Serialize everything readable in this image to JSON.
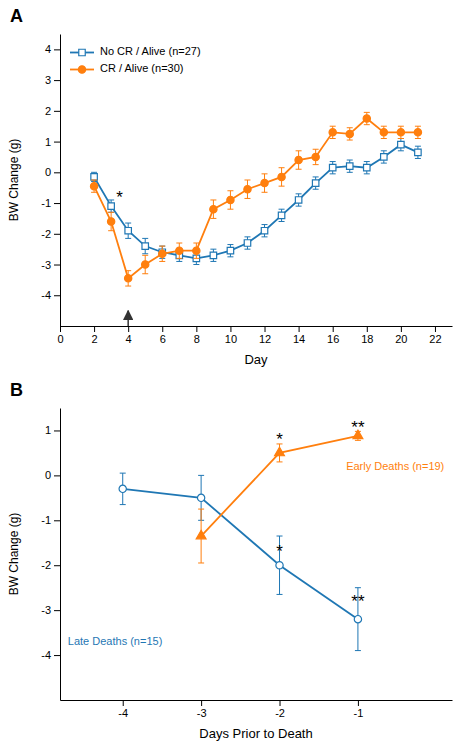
{
  "chart_data": [
    {
      "type": "line",
      "title": "A",
      "xlabel": "Day",
      "ylabel": "BW Change (g)",
      "xlim": [
        0,
        23
      ],
      "ylim": [
        -5,
        4.5
      ],
      "xticks": [
        0,
        2,
        4,
        6,
        8,
        10,
        12,
        14,
        16,
        18,
        20,
        22
      ],
      "yticks": [
        -4,
        -3,
        -2,
        -1,
        0,
        1,
        2,
        3,
        4
      ],
      "legend": "upper left",
      "x": [
        2,
        3,
        4,
        5,
        6,
        7,
        8,
        9,
        10,
        11,
        12,
        13,
        14,
        15,
        16,
        17,
        18,
        19,
        20,
        21
      ],
      "series": [
        {
          "name": "No CR / Alive (n=27)",
          "marker": "open-square",
          "values": [
            -0.15,
            -1.1,
            -1.9,
            -2.4,
            -2.6,
            -2.7,
            -2.8,
            -2.7,
            -2.55,
            -2.3,
            -1.9,
            -1.4,
            -0.9,
            -0.35,
            0.15,
            0.2,
            0.15,
            0.5,
            0.9,
            0.65
          ],
          "error": [
            0.15,
            0.2,
            0.25,
            0.25,
            0.2,
            0.2,
            0.2,
            0.2,
            0.2,
            0.2,
            0.2,
            0.2,
            0.2,
            0.2,
            0.2,
            0.2,
            0.2,
            0.2,
            0.2,
            0.2
          ]
        },
        {
          "name": "CR / Alive (n=30)",
          "marker": "circle",
          "values": [
            -0.45,
            -1.6,
            -3.45,
            -3.0,
            -2.65,
            -2.55,
            -2.55,
            -1.2,
            -0.9,
            -0.55,
            -0.35,
            -0.15,
            0.4,
            0.5,
            1.3,
            1.25,
            1.75,
            1.3,
            1.3,
            1.3
          ],
          "error": [
            0.2,
            0.3,
            0.25,
            0.3,
            0.25,
            0.25,
            0.25,
            0.3,
            0.3,
            0.3,
            0.3,
            0.3,
            0.3,
            0.25,
            0.2,
            0.2,
            0.2,
            0.2,
            0.2,
            0.2
          ]
        }
      ],
      "annotations": [
        {
          "text": "*",
          "x": 3.5,
          "y": -0.85
        }
      ],
      "arrows": [
        {
          "x": 4,
          "y_from": -5.0,
          "y_to": -4.5
        }
      ]
    },
    {
      "type": "line",
      "title": "B",
      "xlabel": "Days Prior to Death",
      "ylabel": "BW Change (g)",
      "xlim": [
        -4.8,
        0.2
      ],
      "ylim": [
        -5,
        1.5
      ],
      "xticks": [
        -4,
        -3,
        -2,
        -1
      ],
      "yticks": [
        -4,
        -3,
        -2,
        -1,
        0,
        1
      ],
      "series": [
        {
          "name": "Late Deaths (n=15)",
          "marker": "open-circle",
          "x": [
            -4,
            -3,
            -2,
            -1
          ],
          "values": [
            -0.3,
            -0.5,
            -2.0,
            -3.2
          ],
          "error": [
            0.35,
            0.5,
            0.65,
            0.7
          ],
          "label_x": -4.7,
          "label_y": -3.7
        },
        {
          "name": "Early Deaths (n=19)",
          "marker": "triangle",
          "x": [
            -3,
            -2,
            -1
          ],
          "values": [
            -1.35,
            0.5,
            0.88
          ],
          "error": [
            0.6,
            0.2,
            0.1
          ],
          "label_x": -1.15,
          "label_y": 0.18
        }
      ],
      "annotations": [
        {
          "text": "*",
          "x": -2,
          "y": 0.78
        },
        {
          "text": "*",
          "x": -2,
          "y": -1.72
        },
        {
          "text": "**",
          "x": -1,
          "y": 1.05
        },
        {
          "text": "**",
          "x": -1,
          "y": -2.82
        }
      ]
    }
  ]
}
